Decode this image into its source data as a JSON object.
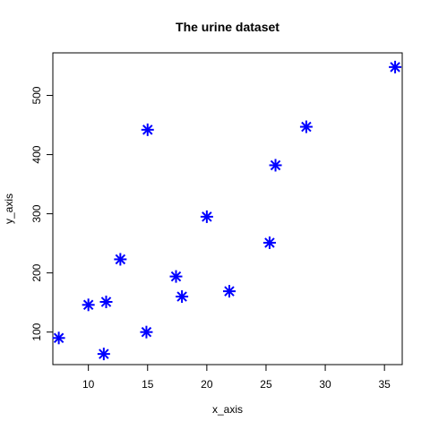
{
  "chart_data": {
    "type": "scatter",
    "title": "The urine dataset",
    "xlabel": "x_axis",
    "ylabel": "y_axis",
    "xlim": [
      7,
      36.5
    ],
    "ylim": [
      45,
      572
    ],
    "x_ticks": [
      10,
      15,
      20,
      25,
      30,
      35
    ],
    "y_ticks": [
      100,
      200,
      300,
      400,
      500
    ],
    "marker": "asterisk",
    "color": "#0000ff",
    "points": [
      {
        "x": 7.5,
        "y": 90
      },
      {
        "x": 10.0,
        "y": 146
      },
      {
        "x": 11.3,
        "y": 63
      },
      {
        "x": 11.5,
        "y": 151
      },
      {
        "x": 12.7,
        "y": 223
      },
      {
        "x": 14.9,
        "y": 100
      },
      {
        "x": 15.0,
        "y": 442
      },
      {
        "x": 17.4,
        "y": 194
      },
      {
        "x": 17.9,
        "y": 160
      },
      {
        "x": 20.0,
        "y": 295
      },
      {
        "x": 21.9,
        "y": 169
      },
      {
        "x": 25.3,
        "y": 251
      },
      {
        "x": 25.8,
        "y": 382
      },
      {
        "x": 28.4,
        "y": 447
      },
      {
        "x": 35.9,
        "y": 548
      }
    ]
  }
}
